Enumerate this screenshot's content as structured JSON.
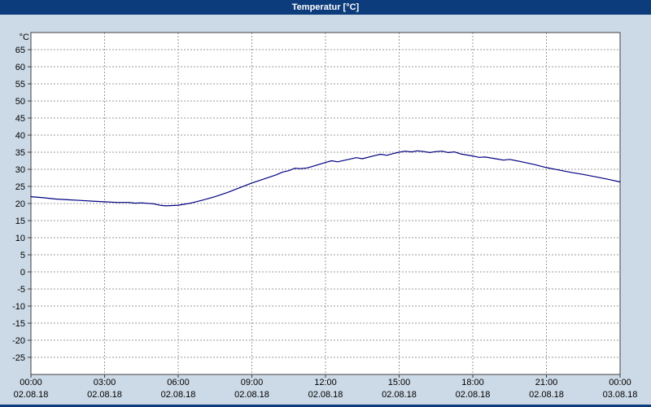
{
  "window": {
    "title": "Temperatur [°C]"
  },
  "colors": {
    "background": "#ccd9e6",
    "titlebar_bg": "#0d3c7c",
    "titlebar_text": "#ffffff",
    "plot_bg": "#ffffff",
    "grid": "#999999",
    "axis": "#404040",
    "line": "#000080",
    "label_text": "#000000"
  },
  "chart_data": {
    "type": "line",
    "title": "Temperatur [°C]",
    "xlabel": "",
    "ylabel": "°C",
    "ylim": [
      -30,
      70
    ],
    "xlim": [
      0,
      24
    ],
    "grid": true,
    "legend_position": "none",
    "yticks": [
      65,
      60,
      55,
      50,
      45,
      40,
      35,
      30,
      25,
      20,
      15,
      10,
      5,
      0,
      -5,
      -10,
      -15,
      -20,
      -25
    ],
    "xticks": [
      {
        "h": 0,
        "time": "00:00",
        "date": "02.08.18"
      },
      {
        "h": 3,
        "time": "03:00",
        "date": "02.08.18"
      },
      {
        "h": 6,
        "time": "06:00",
        "date": "02.08.18"
      },
      {
        "h": 9,
        "time": "09:00",
        "date": "02.08.18"
      },
      {
        "h": 12,
        "time": "12:00",
        "date": "02.08.18"
      },
      {
        "h": 15,
        "time": "15:00",
        "date": "02.08.18"
      },
      {
        "h": 18,
        "time": "18:00",
        "date": "02.08.18"
      },
      {
        "h": 21,
        "time": "21:00",
        "date": "02.08.18"
      },
      {
        "h": 24,
        "time": "00:00",
        "date": "03.08.18"
      }
    ],
    "series": [
      {
        "name": "Temperatur",
        "color": "#000080",
        "points": [
          [
            0,
            22
          ],
          [
            0.5,
            21.7
          ],
          [
            1,
            21.3
          ],
          [
            1.5,
            21.1
          ],
          [
            2,
            20.9
          ],
          [
            2.5,
            20.7
          ],
          [
            3,
            20.5
          ],
          [
            3.5,
            20.3
          ],
          [
            4,
            20.3
          ],
          [
            4.25,
            20.1
          ],
          [
            4.5,
            20.2
          ],
          [
            5,
            19.9
          ],
          [
            5.25,
            19.5
          ],
          [
            5.5,
            19.3
          ],
          [
            5.75,
            19.4
          ],
          [
            6,
            19.5
          ],
          [
            6.5,
            20.1
          ],
          [
            7,
            21
          ],
          [
            7.5,
            22
          ],
          [
            8,
            23.2
          ],
          [
            8.5,
            24.6
          ],
          [
            9,
            26
          ],
          [
            9.5,
            27.2
          ],
          [
            10,
            28.4
          ],
          [
            10.25,
            29.2
          ],
          [
            10.5,
            29.6
          ],
          [
            10.75,
            30.3
          ],
          [
            11,
            30.2
          ],
          [
            11.25,
            30.4
          ],
          [
            11.5,
            30.9
          ],
          [
            12,
            32
          ],
          [
            12.25,
            32.5
          ],
          [
            12.5,
            32.2
          ],
          [
            12.75,
            32.6
          ],
          [
            13,
            33
          ],
          [
            13.25,
            33.4
          ],
          [
            13.5,
            33.1
          ],
          [
            14,
            34
          ],
          [
            14.25,
            34.4
          ],
          [
            14.5,
            34.1
          ],
          [
            14.75,
            34.6
          ],
          [
            15,
            35
          ],
          [
            15.25,
            35.3
          ],
          [
            15.5,
            35.1
          ],
          [
            15.75,
            35.4
          ],
          [
            16,
            35.2
          ],
          [
            16.25,
            34.9
          ],
          [
            16.5,
            35.2
          ],
          [
            16.75,
            35.3
          ],
          [
            17,
            34.9
          ],
          [
            17.25,
            35.1
          ],
          [
            17.5,
            34.5
          ],
          [
            17.75,
            34.2
          ],
          [
            18,
            33.9
          ],
          [
            18.25,
            33.5
          ],
          [
            18.5,
            33.6
          ],
          [
            19,
            33
          ],
          [
            19.25,
            32.7
          ],
          [
            19.5,
            32.9
          ],
          [
            20,
            32.2
          ],
          [
            20.5,
            31.4
          ],
          [
            21,
            30.5
          ],
          [
            21.5,
            29.8
          ],
          [
            22,
            29.1
          ],
          [
            22.5,
            28.5
          ],
          [
            23,
            27.8
          ],
          [
            23.5,
            27.1
          ],
          [
            24,
            26.3
          ]
        ]
      }
    ]
  }
}
